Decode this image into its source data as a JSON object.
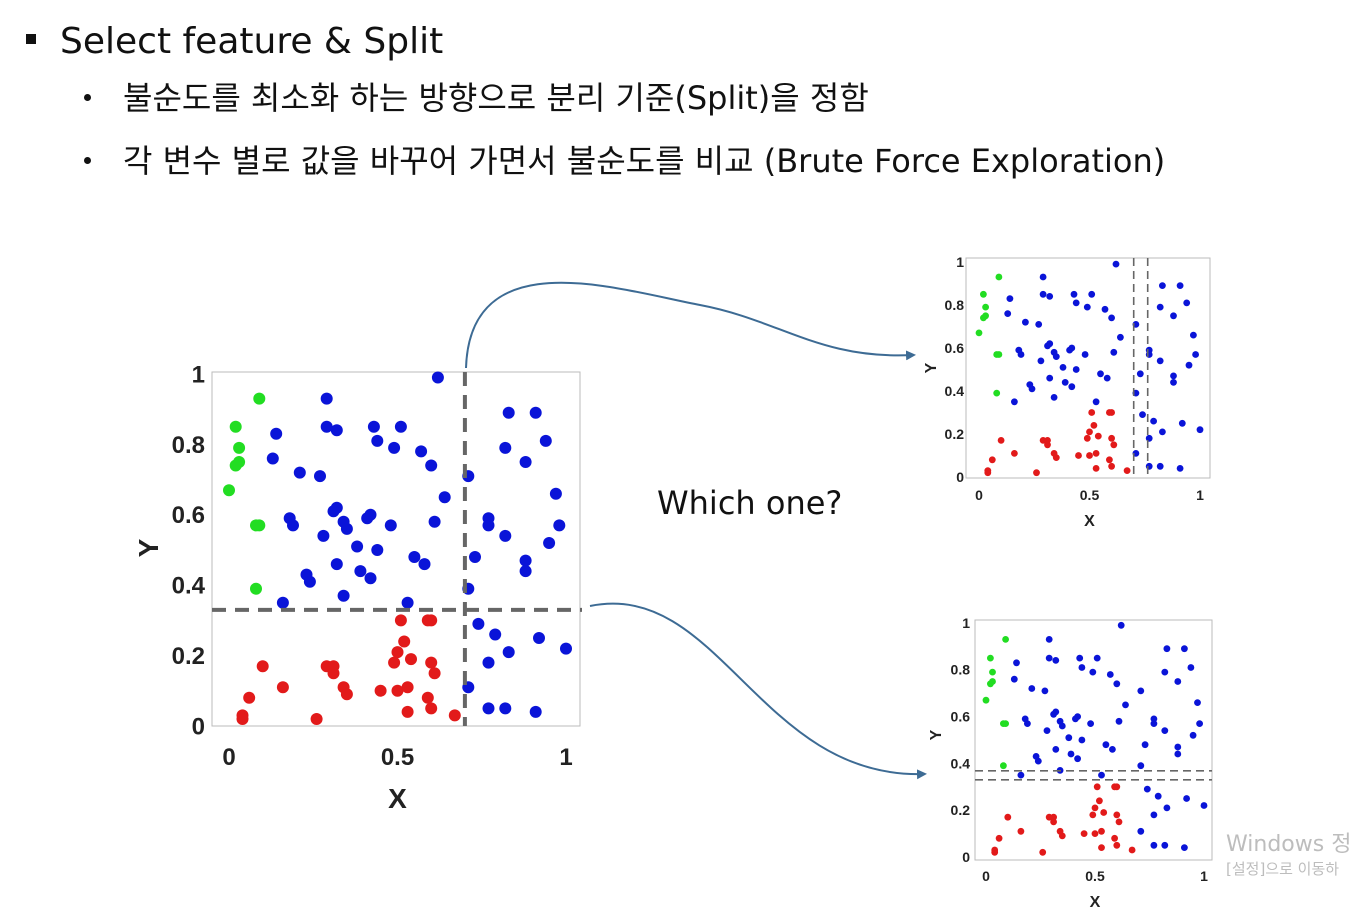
{
  "heading": "Select feature & Split",
  "bullets": [
    "불순도를 최소화 하는 방향으로 분리 기준(Split)을 정함",
    "각 변수 별로 값을 바꾸어 가면서 불순도를 비교 (Brute Force Exploration)"
  ],
  "question": "Which one?",
  "watermark": {
    "line1": "Windows 정",
    "line2": "[설정]으로 이동하"
  },
  "plots": {
    "xlabel": "X",
    "ylabel": "Y",
    "x_ticks": [
      "0",
      "0.5",
      "1"
    ],
    "y_ticks": [
      "0",
      "0.2",
      "0.4",
      "0.6",
      "0.8",
      "1"
    ],
    "colors": {
      "green": "#22dd22",
      "blue": "#0a14d8",
      "red": "#e21a1a",
      "split": "#666666",
      "arrow": "#3d6b94"
    }
  },
  "chart_data": {
    "type": "scatter",
    "xlabel": "X",
    "ylabel": "Y",
    "xlim": [
      0,
      1
    ],
    "ylim": [
      0,
      1
    ],
    "series": [
      {
        "color": "green",
        "points": [
          [
            0.09,
            0.93
          ],
          [
            0.02,
            0.85
          ],
          [
            0.03,
            0.79
          ],
          [
            0.03,
            0.75
          ],
          [
            0.02,
            0.74
          ],
          [
            0.0,
            0.67
          ],
          [
            0.09,
            0.57
          ],
          [
            0.08,
            0.57
          ],
          [
            0.08,
            0.39
          ]
        ]
      },
      {
        "color": "blue",
        "points": [
          [
            0.62,
            0.99
          ],
          [
            0.29,
            0.93
          ],
          [
            0.14,
            0.83
          ],
          [
            0.13,
            0.76
          ],
          [
            0.21,
            0.72
          ],
          [
            0.27,
            0.71
          ],
          [
            0.29,
            0.85
          ],
          [
            0.32,
            0.84
          ],
          [
            0.43,
            0.85
          ],
          [
            0.51,
            0.85
          ],
          [
            0.44,
            0.81
          ],
          [
            0.49,
            0.79
          ],
          [
            0.57,
            0.78
          ],
          [
            0.6,
            0.74
          ],
          [
            0.64,
            0.65
          ],
          [
            0.71,
            0.71
          ],
          [
            0.83,
            0.89
          ],
          [
            0.91,
            0.89
          ],
          [
            0.94,
            0.81
          ],
          [
            0.82,
            0.79
          ],
          [
            0.88,
            0.75
          ],
          [
            0.97,
            0.66
          ],
          [
            0.98,
            0.57
          ],
          [
            0.95,
            0.52
          ],
          [
            0.77,
            0.59
          ],
          [
            0.82,
            0.54
          ],
          [
            0.77,
            0.57
          ],
          [
            0.73,
            0.48
          ],
          [
            0.88,
            0.47
          ],
          [
            0.88,
            0.44
          ],
          [
            0.32,
            0.62
          ],
          [
            0.31,
            0.61
          ],
          [
            0.34,
            0.58
          ],
          [
            0.35,
            0.56
          ],
          [
            0.42,
            0.6
          ],
          [
            0.41,
            0.59
          ],
          [
            0.18,
            0.59
          ],
          [
            0.19,
            0.57
          ],
          [
            0.28,
            0.54
          ],
          [
            0.32,
            0.46
          ],
          [
            0.23,
            0.43
          ],
          [
            0.24,
            0.41
          ],
          [
            0.39,
            0.44
          ],
          [
            0.42,
            0.42
          ],
          [
            0.44,
            0.5
          ],
          [
            0.55,
            0.48
          ],
          [
            0.58,
            0.46
          ],
          [
            0.61,
            0.58
          ],
          [
            0.48,
            0.57
          ],
          [
            0.38,
            0.51
          ],
          [
            0.34,
            0.37
          ],
          [
            0.16,
            0.35
          ],
          [
            0.71,
            0.39
          ],
          [
            0.74,
            0.29
          ],
          [
            0.79,
            0.26
          ],
          [
            0.92,
            0.25
          ],
          [
            1.0,
            0.22
          ],
          [
            0.83,
            0.21
          ],
          [
            0.77,
            0.18
          ],
          [
            0.71,
            0.11
          ],
          [
            0.77,
            0.05
          ],
          [
            0.82,
            0.05
          ],
          [
            0.91,
            0.04
          ],
          [
            0.53,
            0.35
          ]
        ]
      },
      {
        "color": "red",
        "points": [
          [
            0.6,
            0.3
          ],
          [
            0.51,
            0.3
          ],
          [
            0.59,
            0.3
          ],
          [
            0.52,
            0.24
          ],
          [
            0.5,
            0.21
          ],
          [
            0.49,
            0.18
          ],
          [
            0.54,
            0.19
          ],
          [
            0.6,
            0.18
          ],
          [
            0.61,
            0.15
          ],
          [
            0.5,
            0.1
          ],
          [
            0.45,
            0.1
          ],
          [
            0.53,
            0.11
          ],
          [
            0.59,
            0.08
          ],
          [
            0.6,
            0.05
          ],
          [
            0.53,
            0.04
          ],
          [
            0.34,
            0.11
          ],
          [
            0.35,
            0.09
          ],
          [
            0.29,
            0.17
          ],
          [
            0.31,
            0.17
          ],
          [
            0.31,
            0.15
          ],
          [
            0.1,
            0.17
          ],
          [
            0.06,
            0.08
          ],
          [
            0.04,
            0.03
          ],
          [
            0.04,
            0.02
          ],
          [
            0.16,
            0.11
          ],
          [
            0.26,
            0.02
          ],
          [
            0.67,
            0.03
          ]
        ]
      }
    ],
    "splits": [
      {
        "panel": "main",
        "lines": [
          {
            "axis": "x",
            "value": 0.7
          },
          {
            "axis": "y",
            "value": 0.33
          }
        ]
      },
      {
        "panel": "top-right",
        "lines": [
          {
            "axis": "x",
            "value": 0.7
          }
        ]
      },
      {
        "panel": "bottom-right",
        "lines": [
          {
            "axis": "y",
            "value": 0.33
          }
        ]
      }
    ]
  }
}
